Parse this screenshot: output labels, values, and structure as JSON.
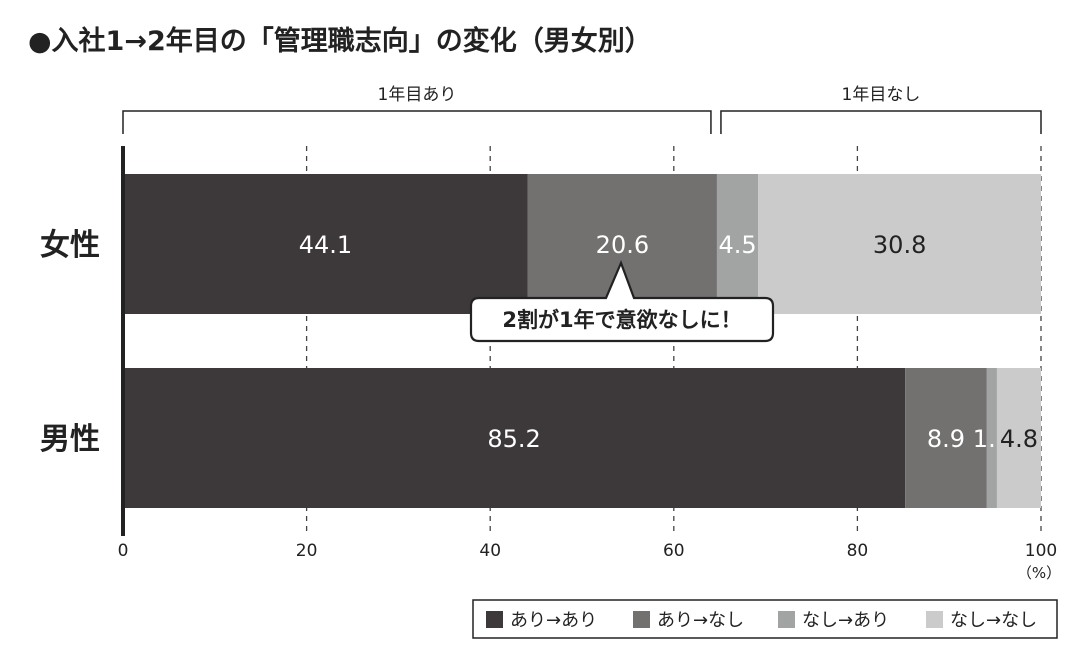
{
  "chart_data": {
    "type": "bar",
    "orientation": "horizontal",
    "stacked": true,
    "title": "●入社1→2年目の「管理職志向」の変化（男女別）",
    "categories": [
      "女性",
      "男性"
    ],
    "series": [
      {
        "name": "あり→あり",
        "values": [
          44.1,
          85.2
        ],
        "color": "#3d393a",
        "label_color": "#ffffff"
      },
      {
        "name": "あり→なし",
        "values": [
          20.6,
          8.9
        ],
        "color": "#727170",
        "label_color": "#ffffff"
      },
      {
        "name": "なし→あり",
        "values": [
          4.5,
          1.1
        ],
        "color": "#a2a3a3",
        "label_color": "#ffffff"
      },
      {
        "name": "なし→なし",
        "values": [
          30.8,
          4.8
        ],
        "color": "#cbcbcb",
        "label_color": "#222222"
      }
    ],
    "xlim": [
      0,
      100
    ],
    "xticks": [
      "0",
      "20",
      "40",
      "60",
      "80",
      "100"
    ],
    "xtick_values": [
      0,
      20,
      40,
      60,
      80,
      100
    ],
    "unit": "（%）",
    "grid": "dashed vertical",
    "legend_position": "bottom-right",
    "groups": [
      {
        "label": "1年目あり",
        "from": 0,
        "to": 64.7
      },
      {
        "label": "1年目なし",
        "to": 100
      }
    ],
    "callout": {
      "text": "2割が1年で意欲なしに！",
      "category": "女性",
      "series": "あり→なし"
    }
  }
}
